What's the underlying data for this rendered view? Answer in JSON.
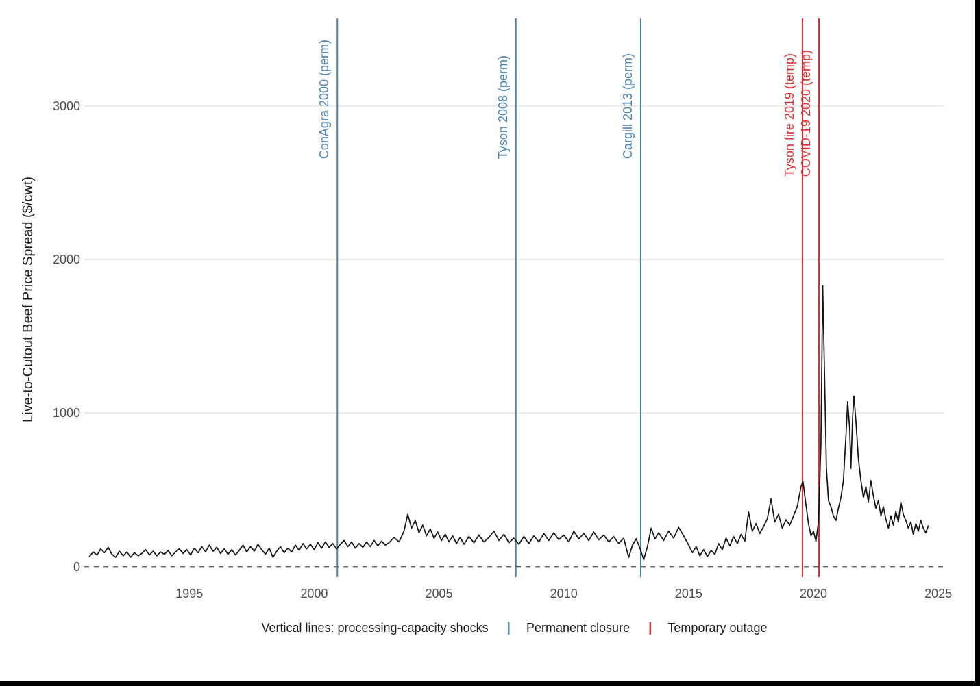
{
  "figure": {
    "background": "#ffffff",
    "edge_border_color": "#000000",
    "axis_text_color": "#4d4d4d",
    "grid_color": "#e4e4e4"
  },
  "caption": {
    "prefix": "Vertical lines: processing-capacity shocks",
    "separator": "|",
    "perm_label": "Permanent closure",
    "temp_label": "Temporary outage",
    "perm_color": "#4682B4",
    "temp_color": "#E02C2C"
  },
  "chart_data": {
    "type": "line",
    "title": "",
    "xlabel": "",
    "ylabel": "Live-to-Cutout Beef Price Spread ($/cwt)",
    "xlim": [
      1990.8,
      2025.3
    ],
    "ylim": [
      0,
      3600
    ],
    "x_ticks": [
      "1995",
      "2000",
      "2005",
      "2010",
      "2015",
      "2020",
      "2025"
    ],
    "x_tick_years": [
      1995,
      2000,
      2005,
      2010,
      2015,
      2020,
      2025
    ],
    "y_ticks": [
      "0",
      "1000",
      "2000",
      "3000"
    ],
    "y_tick_values": [
      0,
      1000,
      2000,
      3000
    ],
    "grid": "horizontal gridlines at 1000/2000/3000 only",
    "zero_line": {
      "value": 0,
      "style": "dashed",
      "color": "#5f5f5f"
    },
    "line_color": "#141414",
    "legend_position": "bottom caption",
    "annotations": [
      {
        "label": "ConAgra 2000 (perm)",
        "year": 2000.93,
        "type": "perm",
        "color": "#4682B4"
      },
      {
        "label": "Tyson 2008 (perm)",
        "year": 2008.08,
        "type": "perm",
        "color": "#4682B4"
      },
      {
        "label": "Cargill 2013 (perm)",
        "year": 2013.08,
        "type": "perm",
        "color": "#4682B4"
      },
      {
        "label": "Tyson fire 2019 (temp)",
        "year": 2019.56,
        "type": "temp",
        "color": "#E02C2C"
      },
      {
        "label": "COVID-19 2020 (temp)",
        "year": 2020.22,
        "type": "temp",
        "color": "#E02C2C"
      }
    ],
    "series": [
      {
        "name": "Live-to-cutout beef price spread",
        "points": [
          [
            1991.0,
            65
          ],
          [
            1991.15,
            95
          ],
          [
            1991.3,
            75
          ],
          [
            1991.45,
            115
          ],
          [
            1991.6,
            90
          ],
          [
            1991.75,
            125
          ],
          [
            1991.9,
            80
          ],
          [
            1992.05,
            60
          ],
          [
            1992.2,
            100
          ],
          [
            1992.35,
            70
          ],
          [
            1992.5,
            95
          ],
          [
            1992.65,
            60
          ],
          [
            1992.8,
            90
          ],
          [
            1992.95,
            70
          ],
          [
            1993.1,
            85
          ],
          [
            1993.25,
            110
          ],
          [
            1993.4,
            75
          ],
          [
            1993.55,
            100
          ],
          [
            1993.7,
            70
          ],
          [
            1993.85,
            95
          ],
          [
            1994.0,
            80
          ],
          [
            1994.15,
            105
          ],
          [
            1994.3,
            70
          ],
          [
            1994.45,
            95
          ],
          [
            1994.6,
            115
          ],
          [
            1994.75,
            85
          ],
          [
            1994.9,
            110
          ],
          [
            1995.05,
            75
          ],
          [
            1995.2,
            120
          ],
          [
            1995.35,
            90
          ],
          [
            1995.5,
            130
          ],
          [
            1995.65,
            95
          ],
          [
            1995.8,
            140
          ],
          [
            1995.95,
            100
          ],
          [
            1996.1,
            125
          ],
          [
            1996.25,
            85
          ],
          [
            1996.4,
            115
          ],
          [
            1996.55,
            80
          ],
          [
            1996.7,
            110
          ],
          [
            1996.85,
            75
          ],
          [
            1997.0,
            105
          ],
          [
            1997.15,
            140
          ],
          [
            1997.3,
            95
          ],
          [
            1997.45,
            130
          ],
          [
            1997.6,
            100
          ],
          [
            1997.75,
            145
          ],
          [
            1997.9,
            110
          ],
          [
            1998.05,
            80
          ],
          [
            1998.2,
            120
          ],
          [
            1998.35,
            60
          ],
          [
            1998.5,
            100
          ],
          [
            1998.65,
            130
          ],
          [
            1998.8,
            90
          ],
          [
            1998.95,
            120
          ],
          [
            1999.1,
            95
          ],
          [
            1999.25,
            140
          ],
          [
            1999.4,
            105
          ],
          [
            1999.55,
            150
          ],
          [
            1999.7,
            115
          ],
          [
            1999.85,
            145
          ],
          [
            2000.0,
            110
          ],
          [
            2000.15,
            155
          ],
          [
            2000.3,
            120
          ],
          [
            2000.45,
            160
          ],
          [
            2000.6,
            125
          ],
          [
            2000.75,
            150
          ],
          [
            2000.9,
            115
          ],
          [
            2001.05,
            145
          ],
          [
            2001.2,
            170
          ],
          [
            2001.35,
            130
          ],
          [
            2001.5,
            160
          ],
          [
            2001.65,
            120
          ],
          [
            2001.8,
            150
          ],
          [
            2001.95,
            125
          ],
          [
            2002.1,
            160
          ],
          [
            2002.25,
            130
          ],
          [
            2002.4,
            170
          ],
          [
            2002.55,
            135
          ],
          [
            2002.7,
            165
          ],
          [
            2002.85,
            140
          ],
          [
            2003.0,
            155
          ],
          [
            2003.2,
            190
          ],
          [
            2003.4,
            160
          ],
          [
            2003.6,
            230
          ],
          [
            2003.75,
            340
          ],
          [
            2003.9,
            250
          ],
          [
            2004.05,
            300
          ],
          [
            2004.2,
            220
          ],
          [
            2004.35,
            270
          ],
          [
            2004.5,
            200
          ],
          [
            2004.65,
            245
          ],
          [
            2004.8,
            185
          ],
          [
            2004.95,
            225
          ],
          [
            2005.1,
            170
          ],
          [
            2005.25,
            210
          ],
          [
            2005.4,
            160
          ],
          [
            2005.55,
            200
          ],
          [
            2005.7,
            150
          ],
          [
            2005.85,
            190
          ],
          [
            2006.0,
            145
          ],
          [
            2006.2,
            195
          ],
          [
            2006.4,
            155
          ],
          [
            2006.6,
            205
          ],
          [
            2006.8,
            160
          ],
          [
            2007.0,
            190
          ],
          [
            2007.2,
            230
          ],
          [
            2007.4,
            170
          ],
          [
            2007.6,
            210
          ],
          [
            2007.8,
            155
          ],
          [
            2008.0,
            185
          ],
          [
            2008.2,
            145
          ],
          [
            2008.4,
            195
          ],
          [
            2008.6,
            150
          ],
          [
            2008.8,
            200
          ],
          [
            2009.0,
            160
          ],
          [
            2009.2,
            215
          ],
          [
            2009.4,
            170
          ],
          [
            2009.6,
            220
          ],
          [
            2009.8,
            175
          ],
          [
            2010.0,
            205
          ],
          [
            2010.2,
            160
          ],
          [
            2010.4,
            230
          ],
          [
            2010.6,
            180
          ],
          [
            2010.8,
            215
          ],
          [
            2011.0,
            170
          ],
          [
            2011.2,
            225
          ],
          [
            2011.4,
            175
          ],
          [
            2011.6,
            205
          ],
          [
            2011.8,
            160
          ],
          [
            2012.0,
            195
          ],
          [
            2012.2,
            150
          ],
          [
            2012.4,
            185
          ],
          [
            2012.6,
            60
          ],
          [
            2012.75,
            140
          ],
          [
            2012.9,
            180
          ],
          [
            2013.05,
            120
          ],
          [
            2013.2,
            45
          ],
          [
            2013.35,
            130
          ],
          [
            2013.5,
            250
          ],
          [
            2013.65,
            180
          ],
          [
            2013.8,
            220
          ],
          [
            2014.0,
            170
          ],
          [
            2014.2,
            230
          ],
          [
            2014.4,
            185
          ],
          [
            2014.6,
            255
          ],
          [
            2014.8,
            200
          ],
          [
            2015.0,
            140
          ],
          [
            2015.15,
            90
          ],
          [
            2015.3,
            130
          ],
          [
            2015.45,
            70
          ],
          [
            2015.6,
            110
          ],
          [
            2015.75,
            65
          ],
          [
            2015.9,
            105
          ],
          [
            2016.05,
            80
          ],
          [
            2016.2,
            150
          ],
          [
            2016.35,
            110
          ],
          [
            2016.5,
            185
          ],
          [
            2016.65,
            135
          ],
          [
            2016.8,
            195
          ],
          [
            2016.95,
            150
          ],
          [
            2017.1,
            210
          ],
          [
            2017.25,
            165
          ],
          [
            2017.4,
            355
          ],
          [
            2017.55,
            230
          ],
          [
            2017.7,
            280
          ],
          [
            2017.85,
            215
          ],
          [
            2018.0,
            260
          ],
          [
            2018.15,
            310
          ],
          [
            2018.3,
            440
          ],
          [
            2018.45,
            290
          ],
          [
            2018.6,
            340
          ],
          [
            2018.75,
            250
          ],
          [
            2018.9,
            305
          ],
          [
            2019.05,
            270
          ],
          [
            2019.2,
            330
          ],
          [
            2019.35,
            390
          ],
          [
            2019.5,
            520
          ],
          [
            2019.58,
            555
          ],
          [
            2019.7,
            400
          ],
          [
            2019.8,
            280
          ],
          [
            2019.9,
            200
          ],
          [
            2020.0,
            230
          ],
          [
            2020.1,
            165
          ],
          [
            2020.2,
            290
          ],
          [
            2020.3,
            800
          ],
          [
            2020.37,
            1830
          ],
          [
            2020.45,
            1200
          ],
          [
            2020.52,
            640
          ],
          [
            2020.6,
            430
          ],
          [
            2020.7,
            390
          ],
          [
            2020.8,
            330
          ],
          [
            2020.9,
            300
          ],
          [
            2021.0,
            380
          ],
          [
            2021.1,
            450
          ],
          [
            2021.2,
            560
          ],
          [
            2021.3,
            850
          ],
          [
            2021.37,
            1075
          ],
          [
            2021.45,
            900
          ],
          [
            2021.5,
            640
          ],
          [
            2021.57,
            980
          ],
          [
            2021.62,
            1110
          ],
          [
            2021.7,
            950
          ],
          [
            2021.8,
            700
          ],
          [
            2021.9,
            560
          ],
          [
            2022.0,
            450
          ],
          [
            2022.1,
            520
          ],
          [
            2022.2,
            420
          ],
          [
            2022.3,
            560
          ],
          [
            2022.4,
            460
          ],
          [
            2022.5,
            380
          ],
          [
            2022.6,
            430
          ],
          [
            2022.7,
            330
          ],
          [
            2022.8,
            390
          ],
          [
            2022.9,
            310
          ],
          [
            2023.0,
            250
          ],
          [
            2023.1,
            330
          ],
          [
            2023.2,
            270
          ],
          [
            2023.3,
            360
          ],
          [
            2023.4,
            290
          ],
          [
            2023.5,
            420
          ],
          [
            2023.6,
            340
          ],
          [
            2023.7,
            300
          ],
          [
            2023.8,
            250
          ],
          [
            2023.9,
            290
          ],
          [
            2024.0,
            210
          ],
          [
            2024.1,
            280
          ],
          [
            2024.2,
            230
          ],
          [
            2024.3,
            300
          ],
          [
            2024.4,
            250
          ],
          [
            2024.5,
            220
          ],
          [
            2024.6,
            265
          ]
        ]
      }
    ]
  }
}
